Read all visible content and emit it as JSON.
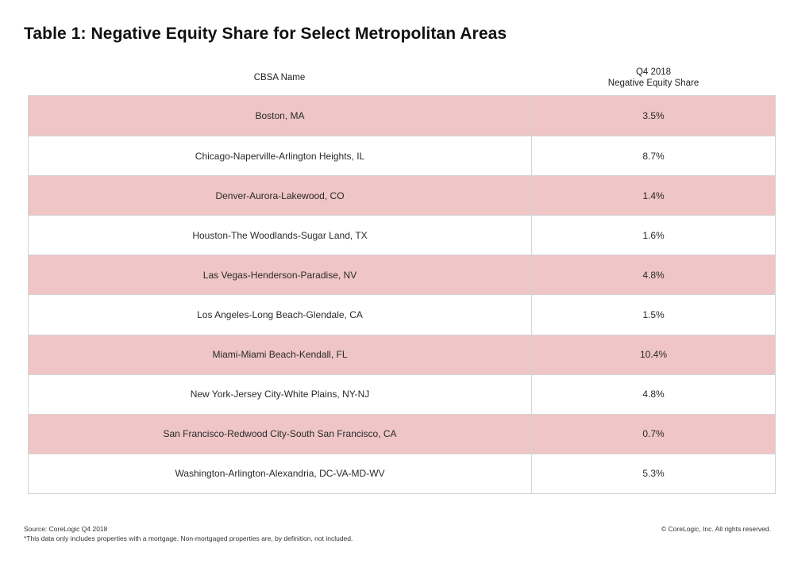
{
  "title": "Table 1: Negative Equity Share for Select Metropolitan Areas",
  "header": {
    "name_col": "CBSA Name",
    "value_col_line1": "Q4 2018",
    "value_col_line2": "Negative Equity Share"
  },
  "rows": [
    {
      "name": "Boston, MA",
      "value": "3.5%"
    },
    {
      "name": "Chicago-Naperville-Arlington Heights, IL",
      "value": "8.7%"
    },
    {
      "name": "Denver-Aurora-Lakewood, CO",
      "value": "1.4%"
    },
    {
      "name": "Houston-The Woodlands-Sugar Land, TX",
      "value": "1.6%"
    },
    {
      "name": "Las Vegas-Henderson-Paradise, NV",
      "value": "4.8%"
    },
    {
      "name": "Los Angeles-Long Beach-Glendale, CA",
      "value": "1.5%"
    },
    {
      "name": "Miami-Miami Beach-Kendall, FL",
      "value": "10.4%"
    },
    {
      "name": "New York-Jersey City-White Plains, NY-NJ",
      "value": "4.8%"
    },
    {
      "name": "San Francisco-Redwood City-South San Francisco, CA",
      "value": "0.7%"
    },
    {
      "name": "Washington-Arlington-Alexandria, DC-VA-MD-WV",
      "value": "5.3%"
    }
  ],
  "footer": {
    "source": "Source: CoreLogic Q4 2018",
    "note": "*This data only includes properties with a mortgage. Non-mortgaged properties are, by definition, not included.",
    "copyright": "© CoreLogic, Inc. All rights reserved."
  },
  "colors": {
    "shaded_row": "#efc5c5",
    "border": "#d4d4d4"
  }
}
